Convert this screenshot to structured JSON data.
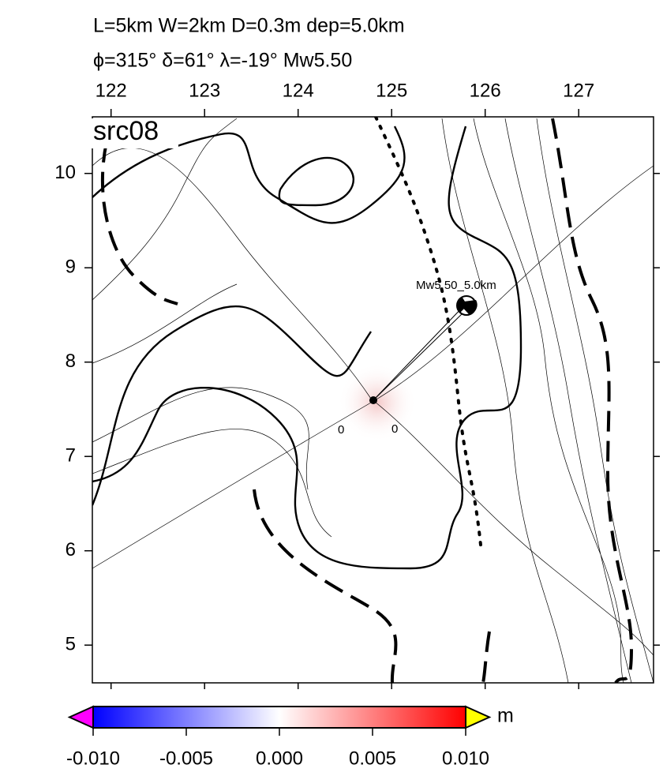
{
  "title_lines": [
    "L=5km W=2km D=0.3m dep=5.0km",
    "ϕ=315° δ=61° λ=-19° Mw5.50"
  ],
  "panel_label": "src08",
  "map": {
    "xlim": [
      121.8,
      127.8
    ],
    "ylim": [
      4.6,
      10.6
    ],
    "xticks": [
      122,
      123,
      124,
      125,
      126,
      127
    ],
    "yticks": [
      5,
      6,
      7,
      8,
      9,
      10
    ]
  },
  "annotations": {
    "event": "Mw5.50_5.0km",
    "contour_labels": [
      "0",
      "0"
    ]
  },
  "colorbar": {
    "unit": "m",
    "clim": [
      -0.01,
      0.01
    ],
    "ticks": [
      {
        "value": -0.01,
        "label": "-0.010"
      },
      {
        "value": -0.005,
        "label": "-0.005"
      },
      {
        "value": 0,
        "label": "0.000"
      },
      {
        "value": 0.005,
        "label": "0.005"
      },
      {
        "value": 0.01,
        "label": "0.010"
      }
    ]
  }
}
